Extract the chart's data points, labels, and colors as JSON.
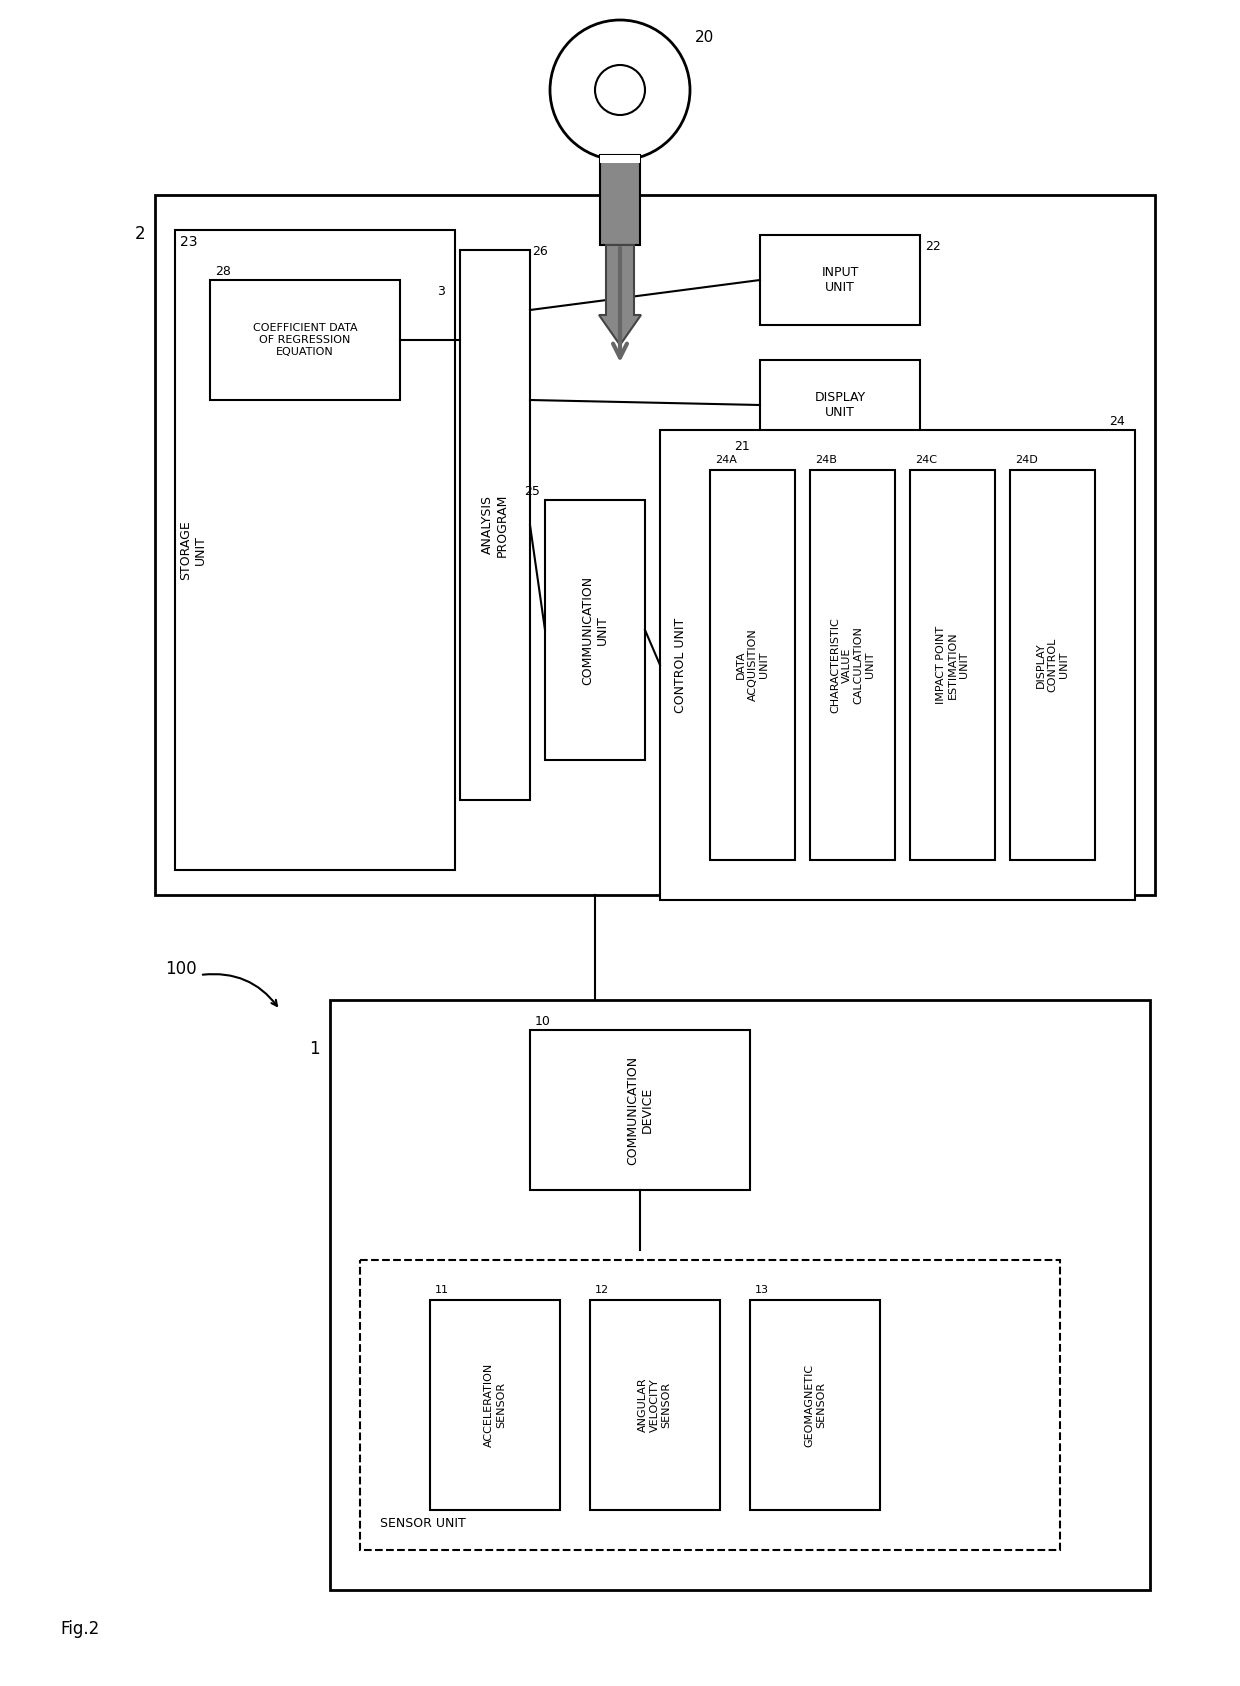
{
  "fig_label": "Fig.2",
  "background_color": "#ffffff",
  "line_color": "#000000",
  "box_color": "#ffffff",
  "gray_fill": "#aaaaaa",
  "light_gray": "#cccccc",
  "label_20": "20",
  "label_2": "2",
  "label_23": "23",
  "label_28": "28",
  "label_3": "3",
  "label_26": "26",
  "label_22": "22",
  "label_21": "21",
  "label_25": "25",
  "label_24": "24",
  "label_24A": "24A",
  "label_24B": "24B",
  "label_24C": "24C",
  "label_24D": "24D",
  "label_100": "100",
  "label_1": "1",
  "label_10": "10",
  "label_11": "11",
  "label_12": "12",
  "label_13": "13",
  "text_storage_unit": "STORAGE\nUNIT",
  "text_coeff": "COEFFICIENT DATA\nOF REGRESSION\nEQUATION",
  "text_analysis": "ANALYSIS\nPROGRAM",
  "text_comm_unit": "COMMUNICATION\nUNIT",
  "text_input": "INPUT\nUNIT",
  "text_display": "DISPLAY\nUNIT",
  "text_control": "CONTROL UNIT",
  "text_data_acq": "DATA\nACQUISITION\nUNIT",
  "text_char_val": "CHARACTERISTIC\nVALUE\nCALCULATION\nUNIT",
  "text_impact": "IMPACT POINT\nESTIMATION\nUNIT",
  "text_disp_ctrl": "DISPLAY\nCONTROL\nUNIT",
  "text_comm_device": "COMMUNICATION\nDEVICE",
  "text_sensor_unit": "SENSOR UNIT",
  "text_accel": "ACCELERATION\nSENSOR",
  "text_angular": "ANGULAR\nVELOCITY\nSENSOR",
  "text_geomag": "GEOMAGNETIC\nSENSOR"
}
